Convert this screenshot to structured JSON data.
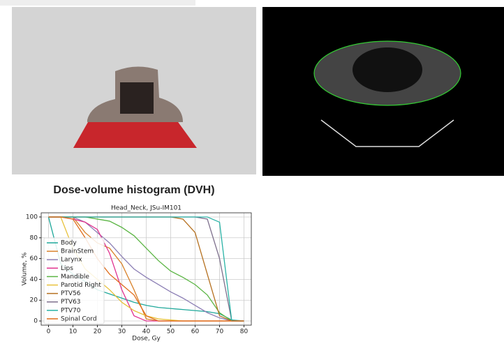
{
  "heading": "Dose-volume histogram (DVH)",
  "chart_data": {
    "type": "line",
    "title": "Head_Neck, JSu-IM101",
    "xlabel": "Dose, Gy",
    "ylabel": "Volume, %",
    "x": [
      0,
      5,
      10,
      15,
      20,
      25,
      30,
      35,
      40,
      45,
      50,
      55,
      60,
      65,
      70,
      75,
      80
    ],
    "series": [
      {
        "name": "Body",
        "color": "#1fa89a",
        "values": [
          100,
          55,
          45,
          38,
          30,
          26,
          22,
          18,
          15,
          13,
          12,
          11,
          10,
          9,
          7,
          1,
          0
        ]
      },
      {
        "name": "BrainStem",
        "color": "#d9822b",
        "values": [
          100,
          100,
          100,
          85,
          75,
          70,
          55,
          30,
          2,
          0,
          0,
          0,
          0,
          0,
          0,
          0,
          0
        ]
      },
      {
        "name": "Larynx",
        "color": "#8c7fb5",
        "values": [
          100,
          100,
          100,
          95,
          85,
          75,
          62,
          50,
          42,
          35,
          28,
          22,
          15,
          8,
          3,
          0,
          0
        ]
      },
      {
        "name": "Lips",
        "color": "#e0338f",
        "values": [
          100,
          100,
          98,
          95,
          88,
          65,
          30,
          5,
          0,
          0,
          0,
          0,
          0,
          0,
          0,
          0,
          0
        ]
      },
      {
        "name": "Mandible",
        "color": "#5bb544",
        "values": [
          100,
          100,
          100,
          100,
          98,
          96,
          90,
          82,
          70,
          58,
          48,
          42,
          35,
          25,
          8,
          0,
          0
        ]
      },
      {
        "name": "Parotid Right",
        "color": "#e8c13a",
        "values": [
          100,
          100,
          70,
          50,
          40,
          30,
          18,
          10,
          5,
          2,
          1,
          0,
          0,
          0,
          0,
          0,
          0
        ]
      },
      {
        "name": "PTV56",
        "color": "#b5701f",
        "values": [
          100,
          100,
          100,
          100,
          100,
          100,
          100,
          100,
          100,
          100,
          100,
          98,
          85,
          45,
          5,
          0,
          0
        ]
      },
      {
        "name": "PTV63",
        "color": "#7d6f8c",
        "values": [
          100,
          100,
          100,
          100,
          100,
          100,
          100,
          100,
          100,
          100,
          100,
          100,
          100,
          98,
          60,
          0,
          0
        ]
      },
      {
        "name": "PTV70",
        "color": "#2ab3a6",
        "values": [
          100,
          100,
          100,
          100,
          100,
          100,
          100,
          100,
          100,
          100,
          100,
          100,
          100,
          100,
          95,
          0,
          0
        ]
      },
      {
        "name": "Spinal Cord",
        "color": "#e06d1b",
        "values": [
          100,
          100,
          98,
          80,
          60,
          45,
          35,
          25,
          5,
          0,
          0,
          0,
          0,
          0,
          0,
          0,
          0
        ]
      }
    ],
    "xlim": [
      -3,
      83
    ],
    "ylim": [
      -4,
      104
    ],
    "xticks": [
      0,
      10,
      20,
      30,
      40,
      50,
      60,
      70,
      80
    ],
    "yticks": [
      0,
      20,
      40,
      60,
      80,
      100
    ],
    "grid": true,
    "legend": "lower left"
  }
}
